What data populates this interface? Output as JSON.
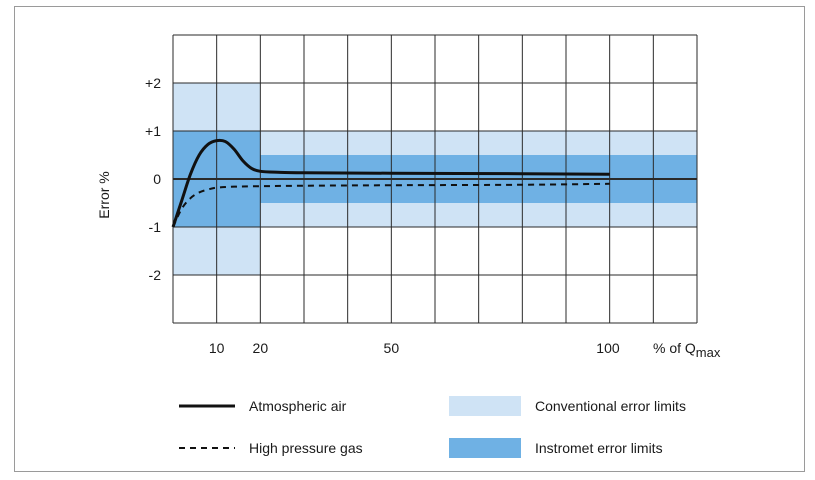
{
  "chart_data": {
    "type": "line",
    "ylabel": "Error %",
    "xlabel_prefix": "% of Q",
    "xlabel_subscript": "max",
    "xlim": [
      0,
      120
    ],
    "ylim": [
      -3,
      3
    ],
    "x_ticks": [
      {
        "value": 10,
        "label": "10"
      },
      {
        "value": 20,
        "label": "20"
      },
      {
        "value": 50,
        "label": "50"
      },
      {
        "value": 100,
        "label": "100"
      }
    ],
    "y_ticks": [
      {
        "value": 2,
        "label": "+2"
      },
      {
        "value": 1,
        "label": "+1"
      },
      {
        "value": 0,
        "label": "0"
      },
      {
        "value": -1,
        "label": "-1"
      },
      {
        "value": -2,
        "label": "-2"
      }
    ],
    "grid": true,
    "bands": [
      {
        "name": "Conventional error limits",
        "color": "#cfe3f5",
        "x": [
          0,
          20
        ],
        "y": [
          -2,
          2
        ]
      },
      {
        "name": "Conventional error limits",
        "color": "#cfe3f5",
        "x": [
          20,
          120
        ],
        "y": [
          -1,
          1
        ]
      },
      {
        "name": "Instromet error limits",
        "color": "#6fb1e4",
        "x": [
          0,
          20
        ],
        "y": [
          -1,
          1
        ]
      },
      {
        "name": "Instromet error limits",
        "color": "#6fb1e4",
        "x": [
          20,
          120
        ],
        "y": [
          -0.5,
          0.5
        ]
      }
    ],
    "series": [
      {
        "name": "Atmospheric air",
        "style": "solid",
        "x": [
          0,
          2,
          4,
          6,
          8,
          10,
          12,
          14,
          16,
          18,
          20,
          24,
          30,
          50,
          80,
          100
        ],
        "y": [
          -1.0,
          -0.45,
          0.1,
          0.5,
          0.72,
          0.8,
          0.78,
          0.62,
          0.38,
          0.22,
          0.16,
          0.14,
          0.13,
          0.12,
          0.11,
          0.1
        ]
      },
      {
        "name": "High pressure gas",
        "style": "dashed",
        "x": [
          0,
          2,
          4,
          6,
          8,
          10,
          14,
          20,
          30,
          50,
          80,
          100
        ],
        "y": [
          -1.0,
          -0.62,
          -0.4,
          -0.28,
          -0.22,
          -0.18,
          -0.16,
          -0.15,
          -0.14,
          -0.13,
          -0.12,
          -0.1
        ]
      }
    ],
    "legend": {
      "position": "bottom",
      "items": [
        {
          "label": "Atmospheric air",
          "kind": "line",
          "style": "solid"
        },
        {
          "label": "High pressure gas",
          "kind": "line",
          "style": "dashed"
        },
        {
          "label": "Conventional error limits",
          "kind": "swatch",
          "color": "#cfe3f5"
        },
        {
          "label": "Instromet error limits",
          "kind": "swatch",
          "color": "#6fb1e4"
        }
      ]
    }
  }
}
